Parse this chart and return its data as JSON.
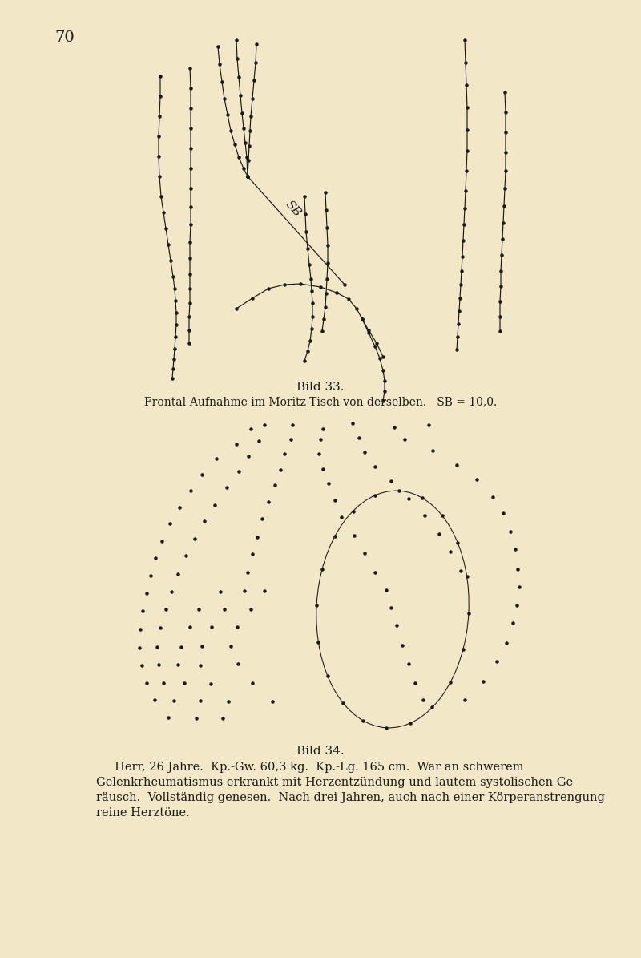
{
  "bg_color": "#f2e8c8",
  "line_color": "#1a1a1a",
  "dot_color": "#1a1a1a",
  "dot_size": 5,
  "line_width": 0.85,
  "page_number": "70",
  "caption1": "Bild 33.",
  "caption1_sub": "Frontal-Aufnahme im Moritz-Tisch von derselben.   SB = 10,0.",
  "caption2": "Bild 34.",
  "caption2_sub": "     Herr, 26 Jahre.  Kp.-Gw. 60,3 kg.  Kp.-Lg. 165 cm.   War an schwerem\nGelenkrheumatismus erkrankt mit Herzentzündung und lautem systolischen Ge-\nräusch.  Vollständig genesen.  Nach drei Jahren, auch nach einer Körperanstrengung\nreine Herztöne."
}
